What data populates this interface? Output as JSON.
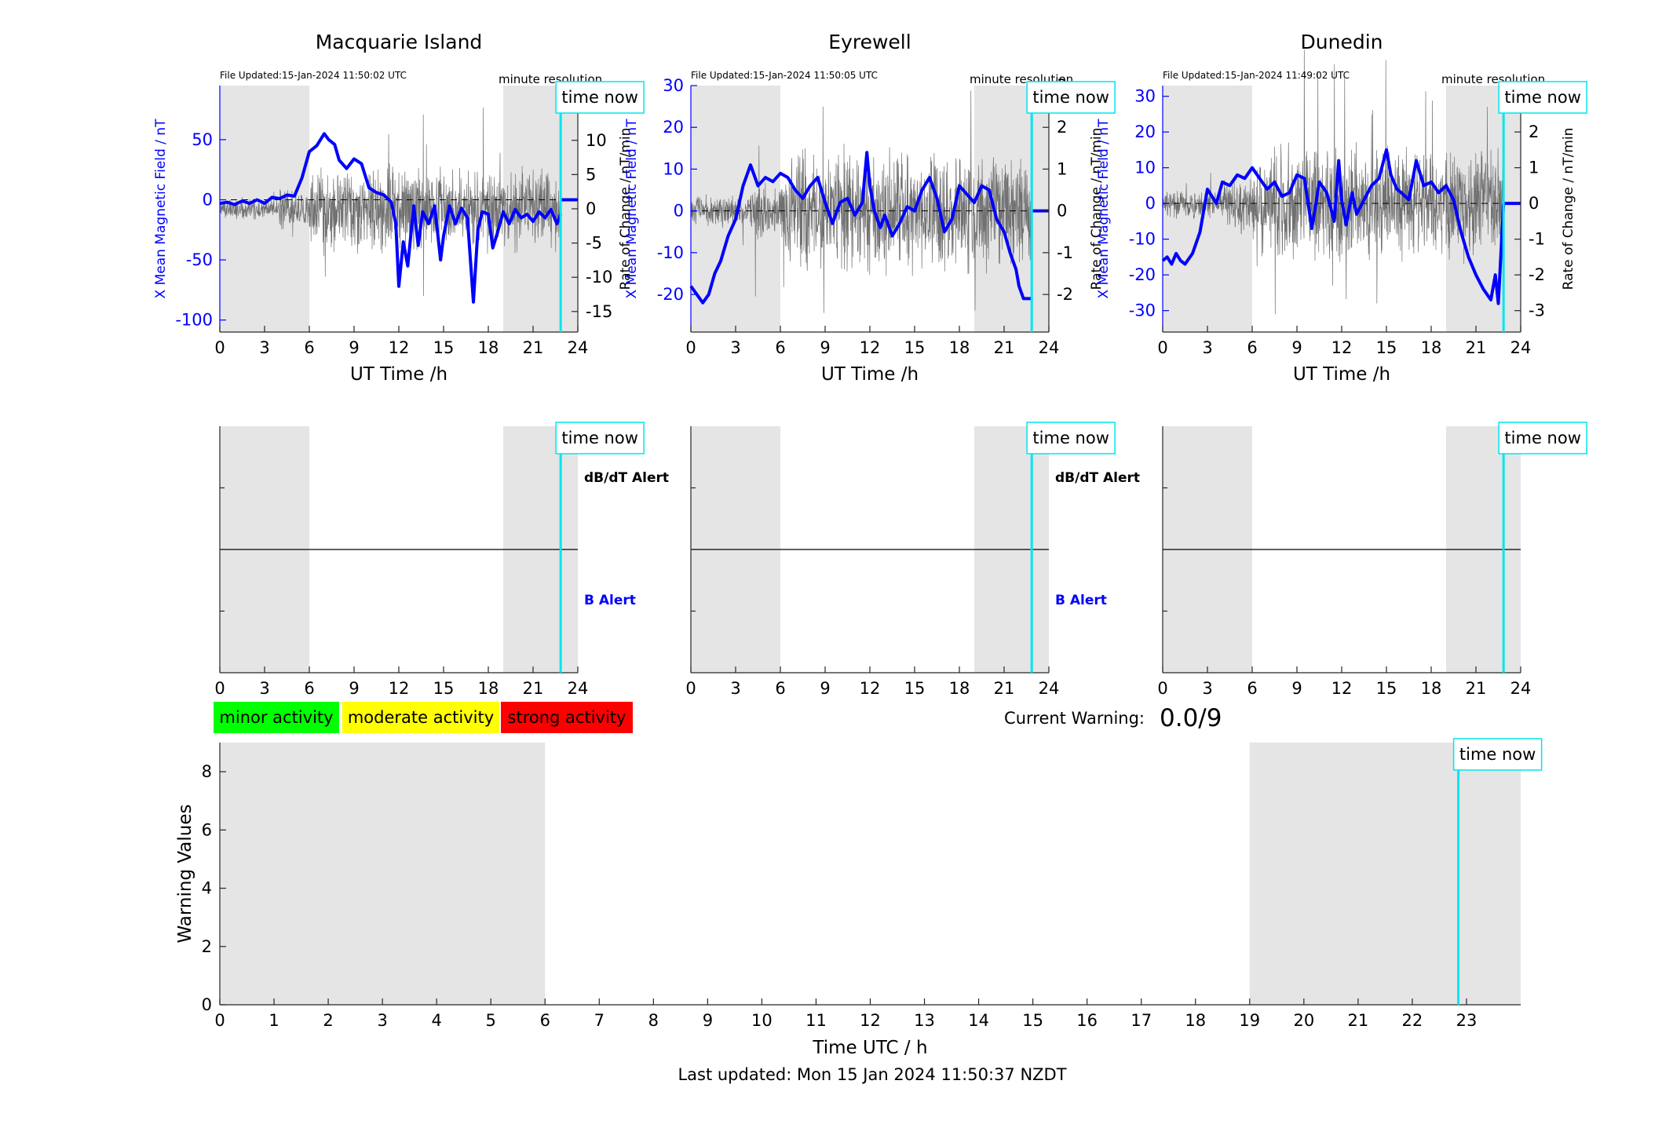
{
  "figure": {
    "footer": "Last updated: Mon 15 Jan 2024 11:50:37 NZDT",
    "current_warning_label": "Current Warning:",
    "current_warning_value": "0.0/9",
    "time_now_label": "time now"
  },
  "legend": [
    {
      "label": "minor activity",
      "color": "#00ff00"
    },
    {
      "label": "moderate activity",
      "color": "#ffff00"
    },
    {
      "label": "strong activity",
      "color": "#ff0000"
    }
  ],
  "colors": {
    "field": "#0000ff",
    "rate": "#707070",
    "time_now": "#00e5ee",
    "night_shade": "#e5e5e5",
    "axis": "#262626"
  },
  "chart_data": [
    {
      "type": "line",
      "title": "Macquarie Island",
      "file_updated": "File Updated:15-Jan-2024 11:50:02 UTC",
      "resolution": "minute resolution",
      "xlabel": "UT Time /h",
      "ylabel_left": "X Mean Magnetic Field / nT",
      "ylabel_right": "Rate of Change / nT/min",
      "xlim": [
        0,
        24
      ],
      "xticks": [
        0,
        3,
        6,
        9,
        12,
        15,
        18,
        21,
        24
      ],
      "ylim_left": [
        -110,
        95
      ],
      "yticks_left": [
        -100,
        -50,
        0,
        50
      ],
      "ylim_right": [
        -18,
        18
      ],
      "yticks_right": [
        -15,
        -10,
        -5,
        0,
        5,
        10,
        15
      ],
      "shaded_hours": [
        [
          0,
          6
        ],
        [
          19,
          24
        ]
      ],
      "time_now": 22.85,
      "rate_amplitude": 5,
      "rate_seed": 11,
      "series": [
        {
          "x": [
            0,
            0.5,
            1,
            1.5,
            2,
            2.5,
            3,
            3.5,
            4,
            4.5,
            5,
            5.5,
            6,
            6.5,
            7,
            7.3,
            7.7,
            8,
            8.5,
            9,
            9.5,
            10,
            10.5,
            11,
            11.5,
            11.8,
            12,
            12.3,
            12.6,
            13,
            13.3,
            13.6,
            14,
            14.4,
            14.8,
            15,
            15.4,
            15.8,
            16.2,
            16.6,
            17,
            17.3,
            17.6,
            18,
            18.3,
            18.6,
            19,
            19.4,
            19.8,
            20.2,
            20.6,
            21,
            21.4,
            21.8,
            22.2,
            22.6,
            22.85
          ],
          "y": [
            -3,
            -2,
            -4,
            -1,
            -3,
            0,
            -3,
            2,
            1,
            4,
            3,
            18,
            40,
            45,
            55,
            50,
            46,
            33,
            26,
            34,
            30,
            10,
            6,
            4,
            -2,
            -20,
            -72,
            -35,
            -55,
            -5,
            -38,
            -10,
            -20,
            -5,
            -50,
            -30,
            -5,
            -20,
            -7,
            -15,
            -85,
            -25,
            -10,
            -12,
            -40,
            -28,
            -10,
            -20,
            -8,
            -15,
            -12,
            -18,
            -10,
            -15,
            -8,
            -20,
            -12
          ]
        }
      ]
    },
    {
      "type": "line",
      "title": "Eyrewell",
      "file_updated": "File Updated:15-Jan-2024 11:50:05 UTC",
      "resolution": "minute resolution",
      "xlabel": "UT Time /h",
      "ylabel_left": "X Mean Magnetic Field / nT",
      "ylabel_right": "Rate of Change / nT/min",
      "xlim": [
        0,
        24
      ],
      "xticks": [
        0,
        3,
        6,
        9,
        12,
        15,
        18,
        21,
        24
      ],
      "ylim_left": [
        -29,
        30
      ],
      "yticks_left": [
        -20,
        -10,
        0,
        10,
        20,
        30
      ],
      "ylim_right": [
        -2.9,
        3
      ],
      "yticks_right": [
        -2,
        -1,
        0,
        1,
        2,
        3
      ],
      "shaded_hours": [
        [
          0,
          6
        ],
        [
          19,
          24
        ]
      ],
      "time_now": 22.85,
      "rate_amplitude": 1.2,
      "rate_seed": 29,
      "series": [
        {
          "x": [
            0,
            0.4,
            0.8,
            1.2,
            1.6,
            2,
            2.5,
            3,
            3.5,
            4,
            4.5,
            5,
            5.5,
            6,
            6.5,
            7,
            7.5,
            8,
            8.5,
            9,
            9.5,
            10,
            10.5,
            11,
            11.5,
            11.8,
            12,
            12.3,
            12.7,
            13,
            13.5,
            14,
            14.5,
            15,
            15.5,
            16,
            16.5,
            17,
            17.5,
            18,
            18.5,
            19,
            19.5,
            20,
            20.5,
            21,
            21.4,
            21.8,
            22,
            22.3,
            22.85
          ],
          "y": [
            -18,
            -20,
            -22,
            -20,
            -15,
            -12,
            -6,
            -2,
            6,
            11,
            6,
            8,
            7,
            9,
            8,
            5,
            3,
            6,
            8,
            2,
            -3,
            2,
            3,
            -1,
            2,
            14,
            6,
            0,
            -4,
            -1,
            -6,
            -3,
            1,
            0,
            5,
            8,
            3,
            -5,
            -2,
            6,
            4,
            2,
            6,
            5,
            -2,
            -5,
            -10,
            -14,
            -18,
            -21,
            -21
          ]
        }
      ]
    },
    {
      "type": "line",
      "title": "Dunedin",
      "file_updated": "File Updated:15-Jan-2024 11:49:02 UTC",
      "resolution": "minute resolution",
      "xlabel": "UT Time /h",
      "ylabel_left": "X Mean Magnetic Field / nT",
      "ylabel_right": "Rate of Change / nT/min",
      "xlim": [
        0,
        24
      ],
      "xticks": [
        0,
        3,
        6,
        9,
        12,
        15,
        18,
        21,
        24
      ],
      "ylim_left": [
        -36,
        33
      ],
      "yticks_left": [
        -30,
        -20,
        -10,
        0,
        10,
        20,
        30
      ],
      "ylim_right": [
        -3.6,
        3.3
      ],
      "yticks_right": [
        -3,
        -2,
        -1,
        0,
        1,
        2,
        3
      ],
      "shaded_hours": [
        [
          0,
          6
        ],
        [
          19,
          24
        ]
      ],
      "time_now": 22.85,
      "rate_amplitude": 1.3,
      "rate_seed": 47,
      "series": [
        {
          "x": [
            0,
            0.3,
            0.6,
            0.9,
            1.2,
            1.5,
            2,
            2.5,
            3,
            3.3,
            3.6,
            4,
            4.5,
            5,
            5.5,
            6,
            6.5,
            7,
            7.5,
            8,
            8.5,
            9,
            9.5,
            10,
            10.5,
            11,
            11.5,
            11.8,
            12,
            12.3,
            12.7,
            13,
            13.5,
            14,
            14.5,
            15,
            15.3,
            15.7,
            16,
            16.5,
            17,
            17.5,
            18,
            18.5,
            19,
            19.5,
            20,
            20.5,
            21,
            21.5,
            22,
            22.3,
            22.5,
            22.85
          ],
          "y": [
            -16,
            -15,
            -17,
            -14,
            -16,
            -17,
            -14,
            -8,
            4,
            2,
            0,
            6,
            5,
            8,
            7,
            10,
            7,
            4,
            6,
            2,
            3,
            8,
            7,
            -7,
            6,
            3,
            -5,
            12,
            1,
            -6,
            3,
            -3,
            1,
            5,
            7,
            15,
            8,
            4,
            3,
            1,
            12,
            5,
            6,
            3,
            5,
            1,
            -8,
            -15,
            -20,
            -24,
            -27,
            -20,
            -28,
            0
          ]
        }
      ]
    },
    {
      "type": "line",
      "title": "",
      "xlabel": "Time UTC / h",
      "ylabel": "Warning Values",
      "xlim": [
        0,
        24
      ],
      "xticks": [
        0,
        1,
        2,
        3,
        4,
        5,
        6,
        7,
        8,
        9,
        10,
        11,
        12,
        13,
        14,
        15,
        16,
        17,
        18,
        19,
        20,
        21,
        22,
        23
      ],
      "ylim": [
        0,
        9
      ],
      "yticks": [
        0,
        2,
        4,
        6,
        8
      ],
      "shaded_hours": [
        [
          0,
          6
        ],
        [
          19,
          24
        ]
      ],
      "time_now": 22.85,
      "series": []
    }
  ],
  "alert_panels": [
    {
      "dbdt_label": "dB/dT Alert",
      "b_label": "B Alert",
      "xticks": [
        0,
        3,
        6,
        9,
        12,
        15,
        18,
        21,
        24
      ]
    },
    {
      "dbdt_label": "dB/dT Alert",
      "b_label": "B Alert",
      "xticks": [
        0,
        3,
        6,
        9,
        12,
        15,
        18,
        21,
        24
      ]
    },
    {
      "dbdt_label": "",
      "b_label": "",
      "xticks": [
        0,
        3,
        6,
        9,
        12,
        15,
        18,
        21,
        24
      ]
    }
  ]
}
